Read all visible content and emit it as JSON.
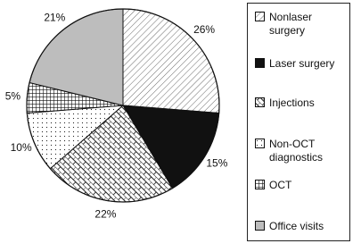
{
  "chart_data": {
    "type": "pie",
    "categories": [
      "Nonlaser surgery",
      "Laser surgery",
      "Injections",
      "Non-OCT diagnostics",
      "OCT",
      "Office visits"
    ],
    "values": [
      26,
      15,
      22,
      10,
      5,
      21
    ],
    "value_labels": [
      "26%",
      "15%",
      "22%",
      "10%",
      "5%",
      "21%"
    ],
    "patterns": [
      "diagonal",
      "solid",
      "brick",
      "dots",
      "grid",
      "gray"
    ],
    "legend": "right"
  }
}
